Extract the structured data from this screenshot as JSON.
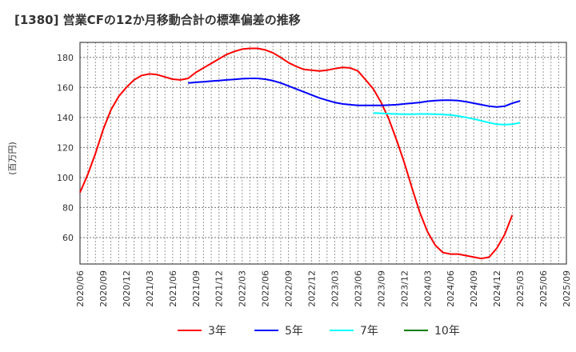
{
  "title": "[1380]  営業CFの12か月移動合計の標準偏差の推移",
  "chart_data": {
    "type": "line",
    "title": "[1380]  営業CFの12か月移動合計の標準偏差の推移",
    "ylabel": "(百万円)",
    "xlabel": "",
    "ylim": [
      42.4,
      190
    ],
    "yticks": [
      60,
      80,
      100,
      120,
      140,
      160,
      180
    ],
    "x_start": "2020/06",
    "x_end": "2025/09",
    "xticks": [
      "2020/06",
      "2020/09",
      "2020/12",
      "2021/03",
      "2021/06",
      "2021/09",
      "2021/12",
      "2022/03",
      "2022/06",
      "2022/09",
      "2022/12",
      "2023/03",
      "2023/06",
      "2023/09",
      "2023/12",
      "2024/03",
      "2024/06",
      "2024/09",
      "2024/12",
      "2025/03",
      "2025/06",
      "2025/09"
    ],
    "grid": true,
    "legend_position": "bottom",
    "series": [
      {
        "name": "3年",
        "color": "#ff0000",
        "start": "2020/06",
        "values": [
          90,
          102,
          116,
          132,
          145,
          154,
          160,
          165,
          168,
          169,
          168.5,
          167,
          165.5,
          165,
          166,
          170,
          173,
          176,
          179,
          182,
          184,
          185.5,
          186,
          186,
          185,
          183,
          180,
          176.5,
          174,
          172,
          171.5,
          171,
          171.5,
          172.5,
          173.3,
          173,
          171,
          165,
          159,
          150,
          139,
          125,
          110,
          93,
          77,
          64,
          55,
          50,
          49,
          49,
          48,
          47,
          46,
          47,
          53,
          62,
          75
        ]
      },
      {
        "name": "5年",
        "color": "#0000ff",
        "start": "2021/08",
        "values": [
          163,
          163.4,
          163.8,
          164.2,
          164.6,
          165,
          165.4,
          165.8,
          166,
          166,
          165.5,
          164.5,
          163,
          161,
          159,
          157,
          155,
          153,
          151.5,
          150,
          149,
          148.5,
          148,
          148,
          148,
          148,
          148.2,
          148.5,
          149,
          149.5,
          150,
          150.8,
          151.2,
          151.5,
          151.5,
          151.2,
          150.5,
          149.5,
          148.5,
          147.5,
          147,
          147.5,
          149.5,
          151
        ]
      },
      {
        "name": "7年",
        "color": "#00ffff",
        "start": "2023/08",
        "values": [
          143,
          142.8,
          142.5,
          142.3,
          142.2,
          142.2,
          142.3,
          142.3,
          142.2,
          142,
          141.6,
          141,
          140,
          139,
          137.8,
          136.5,
          135.5,
          135.2,
          135.5,
          136.5
        ]
      },
      {
        "name": "10年",
        "color": "#008000",
        "start": "2025/09",
        "values": []
      }
    ]
  }
}
